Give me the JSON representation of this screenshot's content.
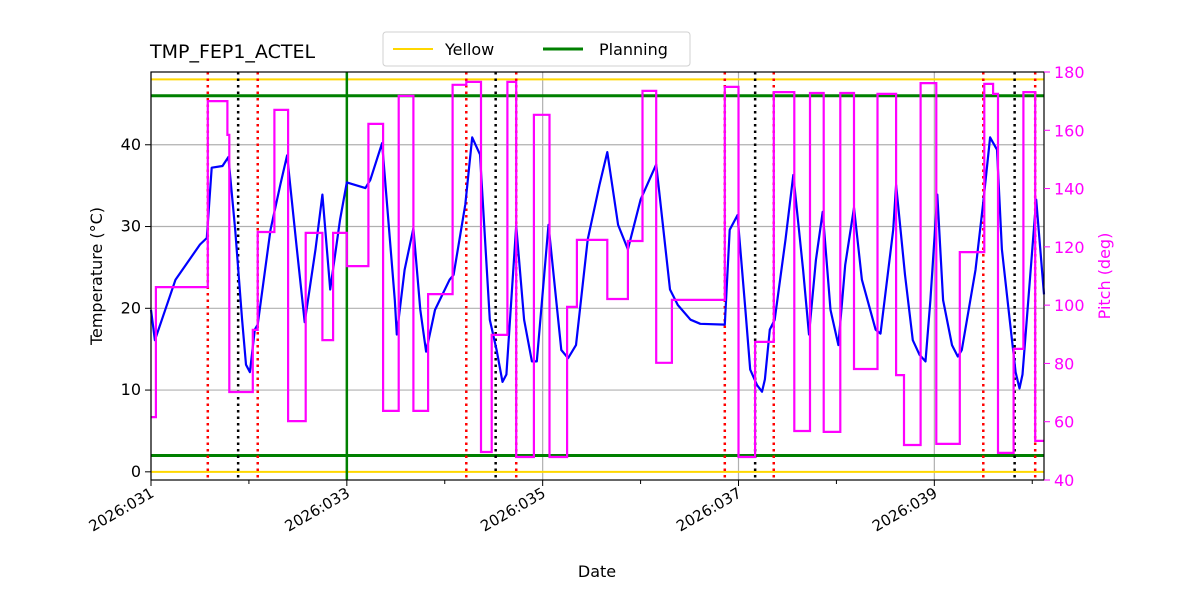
{
  "chart_data": {
    "type": "line",
    "title": "TMP_FEP1_ACTEL",
    "xlabel": "Date",
    "ylabel": "Temperature (°C)",
    "y2label": "Pitch (deg)",
    "xlim": [
      31.0,
      40.12
    ],
    "ylim": [
      -1.0,
      48.9
    ],
    "y2lim": [
      40,
      180
    ],
    "grid": true,
    "legend_position": "top-center",
    "x_tick_values": [
      31,
      33,
      35,
      37,
      39
    ],
    "x_tick_labels": [
      "2026:031",
      "2026:033",
      "2026:035",
      "2026:037",
      "2026:039"
    ],
    "x_minor_ticks": [
      32,
      34,
      36,
      38,
      40
    ],
    "y_ticks": [
      0,
      10,
      20,
      30,
      40
    ],
    "y2_ticks": [
      40,
      60,
      80,
      100,
      120,
      140,
      160,
      180
    ],
    "colors": {
      "temperature": "#0000ff",
      "pitch": "#ff00ff",
      "yellow": "#ffd700",
      "planning": "#008000",
      "red_markers": "#ff0000",
      "black_markers": "#000000",
      "grid": "#b0b0b0"
    },
    "legend": [
      {
        "label": "Yellow",
        "color": "#ffd700"
      },
      {
        "label": "Planning",
        "color": "#008000"
      }
    ],
    "limits": {
      "yellow": [
        0,
        48
      ],
      "planning": [
        2,
        46
      ]
    },
    "vertical_markers": {
      "red_dotted": [
        31.58,
        32.09,
        34.22,
        34.73,
        36.86,
        37.36,
        39.5,
        40.03
      ],
      "black_dotted": [
        31.89,
        34.52,
        37.17,
        39.82
      ],
      "green_solid": [
        33.0
      ]
    },
    "temperature": [
      [
        31.0,
        19.8
      ],
      [
        31.04,
        16.1
      ],
      [
        31.25,
        23.5
      ],
      [
        31.5,
        27.8
      ],
      [
        31.57,
        28.6
      ],
      [
        31.62,
        37.2
      ],
      [
        31.73,
        37.4
      ],
      [
        31.79,
        38.5
      ],
      [
        31.86,
        29.6
      ],
      [
        31.93,
        18.6
      ],
      [
        31.97,
        13.1
      ],
      [
        32.01,
        12.2
      ],
      [
        32.06,
        17.4
      ],
      [
        32.09,
        18.0
      ],
      [
        32.22,
        29.6
      ],
      [
        32.32,
        35.1
      ],
      [
        32.39,
        38.7
      ],
      [
        32.49,
        27.2
      ],
      [
        32.57,
        18.3
      ],
      [
        32.68,
        27.2
      ],
      [
        32.75,
        33.9
      ],
      [
        32.83,
        22.3
      ],
      [
        32.93,
        30.8
      ],
      [
        33.0,
        35.4
      ],
      [
        33.19,
        34.7
      ],
      [
        33.24,
        35.7
      ],
      [
        33.36,
        40.2
      ],
      [
        33.49,
        21.0
      ],
      [
        33.51,
        16.8
      ],
      [
        33.59,
        24.7
      ],
      [
        33.68,
        29.8
      ],
      [
        33.75,
        19.8
      ],
      [
        33.81,
        14.7
      ],
      [
        33.9,
        19.8
      ],
      [
        34.05,
        23.5
      ],
      [
        34.09,
        24.1
      ],
      [
        34.21,
        32.7
      ],
      [
        34.28,
        40.9
      ],
      [
        34.36,
        38.8
      ],
      [
        34.46,
        18.6
      ],
      [
        34.53,
        14.9
      ],
      [
        34.59,
        11.0
      ],
      [
        34.63,
        11.9
      ],
      [
        34.73,
        30.1
      ],
      [
        34.81,
        18.6
      ],
      [
        34.89,
        13.5
      ],
      [
        34.94,
        13.5
      ],
      [
        35.06,
        30.2
      ],
      [
        35.19,
        14.9
      ],
      [
        35.26,
        13.9
      ],
      [
        35.34,
        15.5
      ],
      [
        35.46,
        28.4
      ],
      [
        35.58,
        35.1
      ],
      [
        35.66,
        39.1
      ],
      [
        35.77,
        30.2
      ],
      [
        35.87,
        27.2
      ],
      [
        36.0,
        33.3
      ],
      [
        36.16,
        37.6
      ],
      [
        36.3,
        22.3
      ],
      [
        36.38,
        20.4
      ],
      [
        36.51,
        18.6
      ],
      [
        36.61,
        18.1
      ],
      [
        36.86,
        18.0
      ],
      [
        36.91,
        29.6
      ],
      [
        36.99,
        31.4
      ],
      [
        37.07,
        19.8
      ],
      [
        37.12,
        12.5
      ],
      [
        37.19,
        10.6
      ],
      [
        37.24,
        9.8
      ],
      [
        37.27,
        11.3
      ],
      [
        37.32,
        17.4
      ],
      [
        37.37,
        18.6
      ],
      [
        37.48,
        28.4
      ],
      [
        37.56,
        36.3
      ],
      [
        37.66,
        24.7
      ],
      [
        37.72,
        16.8
      ],
      [
        37.79,
        25.9
      ],
      [
        37.86,
        31.8
      ],
      [
        37.94,
        19.8
      ],
      [
        38.02,
        15.5
      ],
      [
        38.09,
        25.3
      ],
      [
        38.18,
        32.3
      ],
      [
        38.26,
        23.5
      ],
      [
        38.4,
        17.4
      ],
      [
        38.45,
        16.9
      ],
      [
        38.58,
        29.6
      ],
      [
        38.61,
        35.1
      ],
      [
        38.7,
        24.1
      ],
      [
        38.78,
        16.1
      ],
      [
        38.85,
        14.3
      ],
      [
        38.91,
        13.5
      ],
      [
        38.96,
        21.0
      ],
      [
        39.03,
        33.9
      ],
      [
        39.09,
        21.0
      ],
      [
        39.18,
        15.5
      ],
      [
        39.24,
        14.1
      ],
      [
        39.28,
        14.9
      ],
      [
        39.42,
        24.7
      ],
      [
        39.5,
        33.0
      ],
      [
        39.57,
        40.9
      ],
      [
        39.64,
        39.4
      ],
      [
        39.69,
        27.2
      ],
      [
        39.77,
        18.6
      ],
      [
        39.83,
        12.2
      ],
      [
        39.87,
        10.2
      ],
      [
        39.9,
        11.9
      ],
      [
        39.96,
        21.0
      ],
      [
        40.04,
        33.3
      ],
      [
        40.12,
        21.7
      ]
    ],
    "pitch_steps": [
      [
        31.0,
        61.6
      ],
      [
        31.05,
        106.2
      ],
      [
        31.58,
        170.0
      ],
      [
        31.78,
        158.4
      ],
      [
        31.8,
        70.2
      ],
      [
        32.04,
        91.5
      ],
      [
        32.09,
        125.1
      ],
      [
        32.26,
        167.0
      ],
      [
        32.4,
        60.2
      ],
      [
        32.58,
        124.8
      ],
      [
        32.75,
        88.0
      ],
      [
        32.86,
        124.8
      ],
      [
        33.0,
        113.4
      ],
      [
        33.22,
        162.2
      ],
      [
        33.37,
        63.7
      ],
      [
        33.53,
        171.8
      ],
      [
        33.68,
        63.7
      ],
      [
        33.83,
        103.8
      ],
      [
        34.08,
        175.6
      ],
      [
        34.22,
        176.6
      ],
      [
        34.37,
        49.6
      ],
      [
        34.48,
        89.8
      ],
      [
        34.64,
        176.6
      ],
      [
        34.73,
        47.9
      ],
      [
        34.91,
        165.3
      ],
      [
        35.07,
        47.9
      ],
      [
        35.25,
        99.4
      ],
      [
        35.35,
        122.4
      ],
      [
        35.66,
        102.1
      ],
      [
        35.87,
        122.0
      ],
      [
        36.02,
        173.5
      ],
      [
        36.16,
        80.2
      ],
      [
        36.32,
        101.8
      ],
      [
        36.86,
        174.9
      ],
      [
        37.0,
        47.9
      ],
      [
        37.17,
        87.4
      ],
      [
        37.36,
        173.1
      ],
      [
        37.57,
        56.8
      ],
      [
        37.73,
        172.8
      ],
      [
        37.87,
        56.5
      ],
      [
        38.04,
        172.8
      ],
      [
        38.18,
        78.1
      ],
      [
        38.42,
        172.5
      ],
      [
        38.61,
        76.0
      ],
      [
        38.69,
        52.0
      ],
      [
        38.86,
        176.2
      ],
      [
        39.02,
        52.4
      ],
      [
        39.26,
        118.2
      ],
      [
        39.51,
        175.9
      ],
      [
        39.6,
        172.5
      ],
      [
        39.65,
        49.3
      ],
      [
        39.81,
        85.0
      ],
      [
        39.91,
        173.1
      ],
      [
        40.03,
        53.4
      ]
    ]
  }
}
